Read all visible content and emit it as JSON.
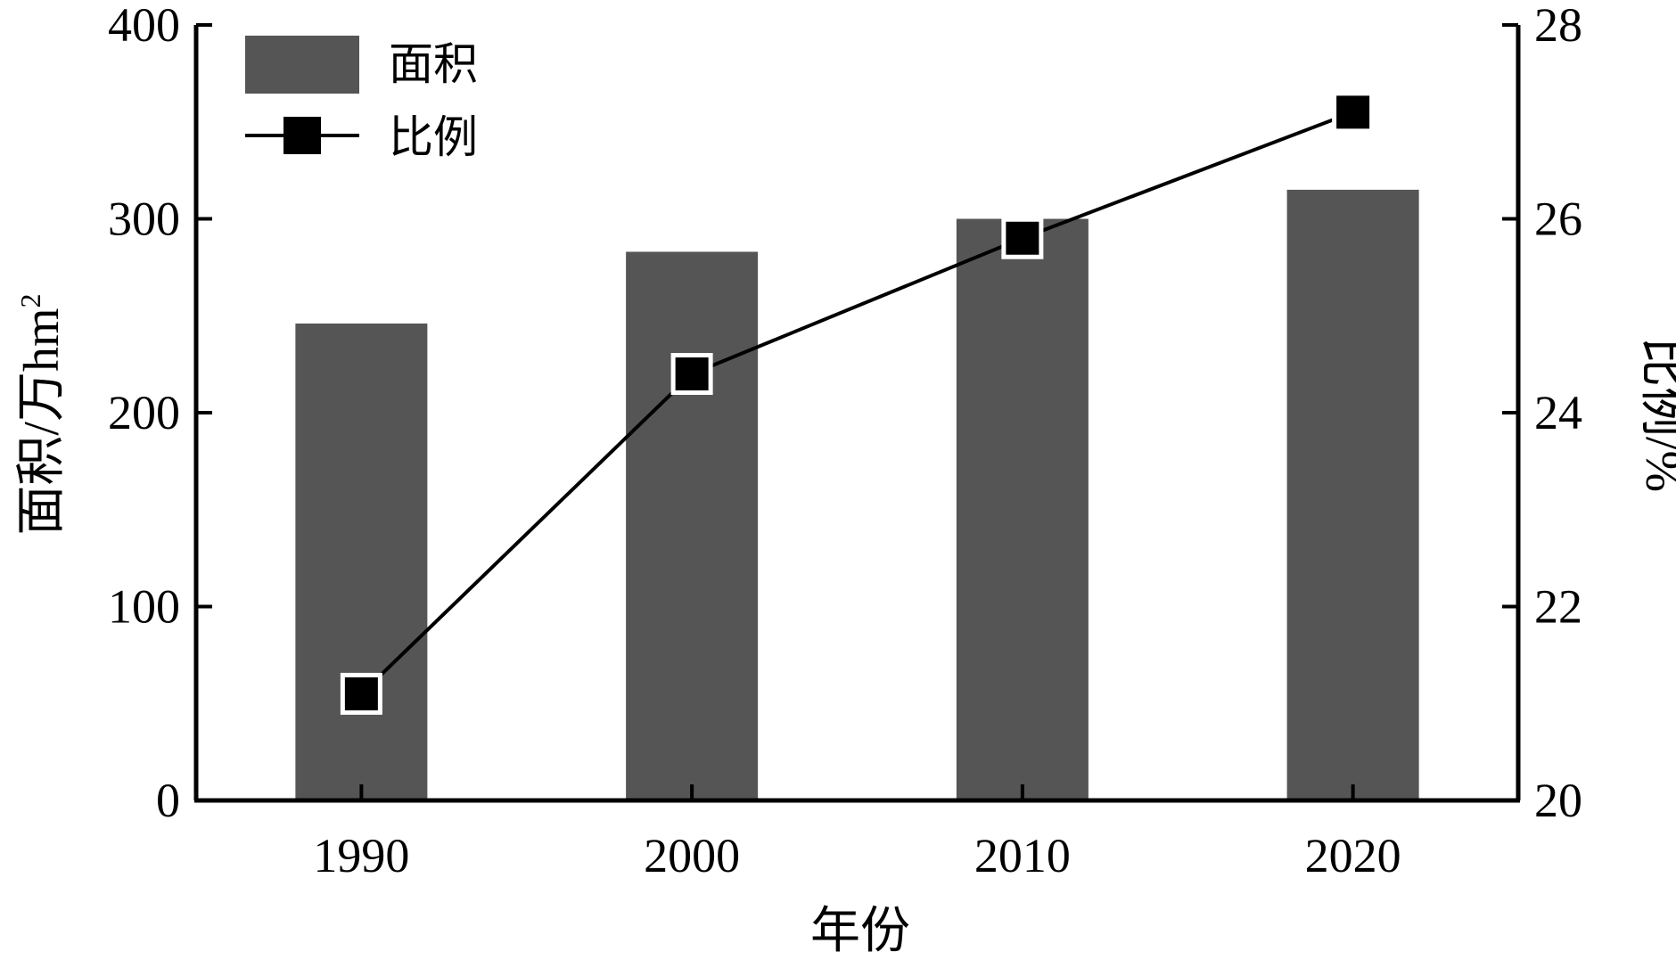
{
  "chart_data": {
    "type": "bar",
    "categories": [
      "1990",
      "2000",
      "2010",
      "2020"
    ],
    "series": [
      {
        "name": "面积",
        "type": "bar",
        "axis": "left",
        "values": [
          246,
          283,
          300,
          315
        ]
      },
      {
        "name": "比例",
        "type": "line",
        "axis": "right",
        "marker": "square",
        "values": [
          21.1,
          24.4,
          25.8,
          27.1
        ]
      }
    ],
    "xlabel": "年份",
    "ylabel_left": "面积/万hm",
    "ylabel_left_superscript": "2",
    "ylabel_right": "比例/%",
    "ylim_left": [
      0,
      400
    ],
    "ylim_right": [
      20,
      28
    ],
    "yticks_left": [
      "0",
      "100",
      "200",
      "300",
      "400"
    ],
    "yticks_right": [
      "20",
      "22",
      "24",
      "26",
      "28"
    ],
    "legend": {
      "placement": "top-left",
      "items": [
        {
          "label": "面积",
          "kind": "bar"
        },
        {
          "label": "比例",
          "kind": "line-square"
        }
      ]
    },
    "grid": false,
    "colors": {
      "bar": "#555555",
      "line": "#000000",
      "axis": "#000000"
    }
  }
}
